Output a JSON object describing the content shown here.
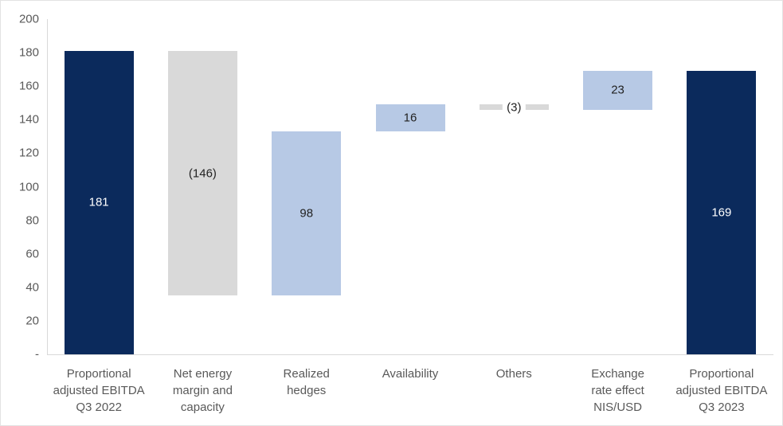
{
  "chart_data": {
    "type": "waterfall",
    "title": "",
    "grid": false,
    "legend_position": "none",
    "y_axis": {
      "min": 0,
      "max": 200,
      "step": 20,
      "tick_labels": [
        "200",
        "180",
        "160",
        "140",
        "120",
        "100",
        "80",
        "60",
        "40",
        "20",
        "-"
      ]
    },
    "categories": [
      {
        "label": "Proportional adjusted EBITDA Q3 2022",
        "lines": [
          "Proportional",
          "adjusted EBITDA",
          "Q3 2022"
        ]
      },
      {
        "label": "Net energy margin and capacity",
        "lines": [
          "Net energy",
          "margin and",
          "capacity"
        ]
      },
      {
        "label": "Realized hedges",
        "lines": [
          "Realized",
          "hedges"
        ]
      },
      {
        "label": "Availability",
        "lines": [
          "Availability"
        ]
      },
      {
        "label": "Others",
        "lines": [
          "Others"
        ]
      },
      {
        "label": "Exchange rate effect NIS/USD",
        "lines": [
          "Exchange",
          "rate effect",
          "NIS/USD"
        ]
      },
      {
        "label": "Proportional adjusted EBITDA Q3 2023",
        "lines": [
          "Proportional",
          "adjusted EBITDA",
          "Q3 2023"
        ]
      }
    ],
    "bars": [
      {
        "category": "Proportional adjusted EBITDA Q3 2022",
        "value": 181,
        "label": "181",
        "start": 0,
        "end": 181,
        "role": "total",
        "color": "#0b2a5c",
        "label_color": "#ffffff"
      },
      {
        "category": "Net energy margin and capacity",
        "value": -146,
        "label": "(146)",
        "start": 181,
        "end": 35,
        "role": "decrease",
        "color": "#d9d9d9",
        "label_color": "#222222"
      },
      {
        "category": "Realized hedges",
        "value": 98,
        "label": "98",
        "start": 35,
        "end": 133,
        "role": "increase",
        "color": "#b7c9e5",
        "label_color": "#222222"
      },
      {
        "category": "Availability",
        "value": 16,
        "label": "16",
        "start": 133,
        "end": 149,
        "role": "increase",
        "color": "#b7c9e5",
        "label_color": "#222222"
      },
      {
        "category": "Others",
        "value": -3,
        "label": "(3)",
        "start": 149,
        "end": 146,
        "role": "decrease",
        "color": "#d9d9d9",
        "label_color": "#222222",
        "label_bg": "#ffffff"
      },
      {
        "category": "Exchange rate effect NIS/USD",
        "value": 23,
        "label": "23",
        "start": 146,
        "end": 169,
        "role": "increase",
        "color": "#b7c9e5",
        "label_color": "#222222"
      },
      {
        "category": "Proportional adjusted EBITDA Q3 2023",
        "value": 169,
        "label": "169",
        "start": 0,
        "end": 169,
        "role": "total",
        "color": "#0b2a5c",
        "label_color": "#ffffff"
      }
    ]
  },
  "colors": {
    "total_bar": "#0b2a5c",
    "increase_bar": "#b7c9e5",
    "decrease_bar": "#d9d9d9",
    "axis_line": "#d9d9d9",
    "axis_text": "#595959",
    "background": "#ffffff",
    "border": "#e3e3e3"
  }
}
